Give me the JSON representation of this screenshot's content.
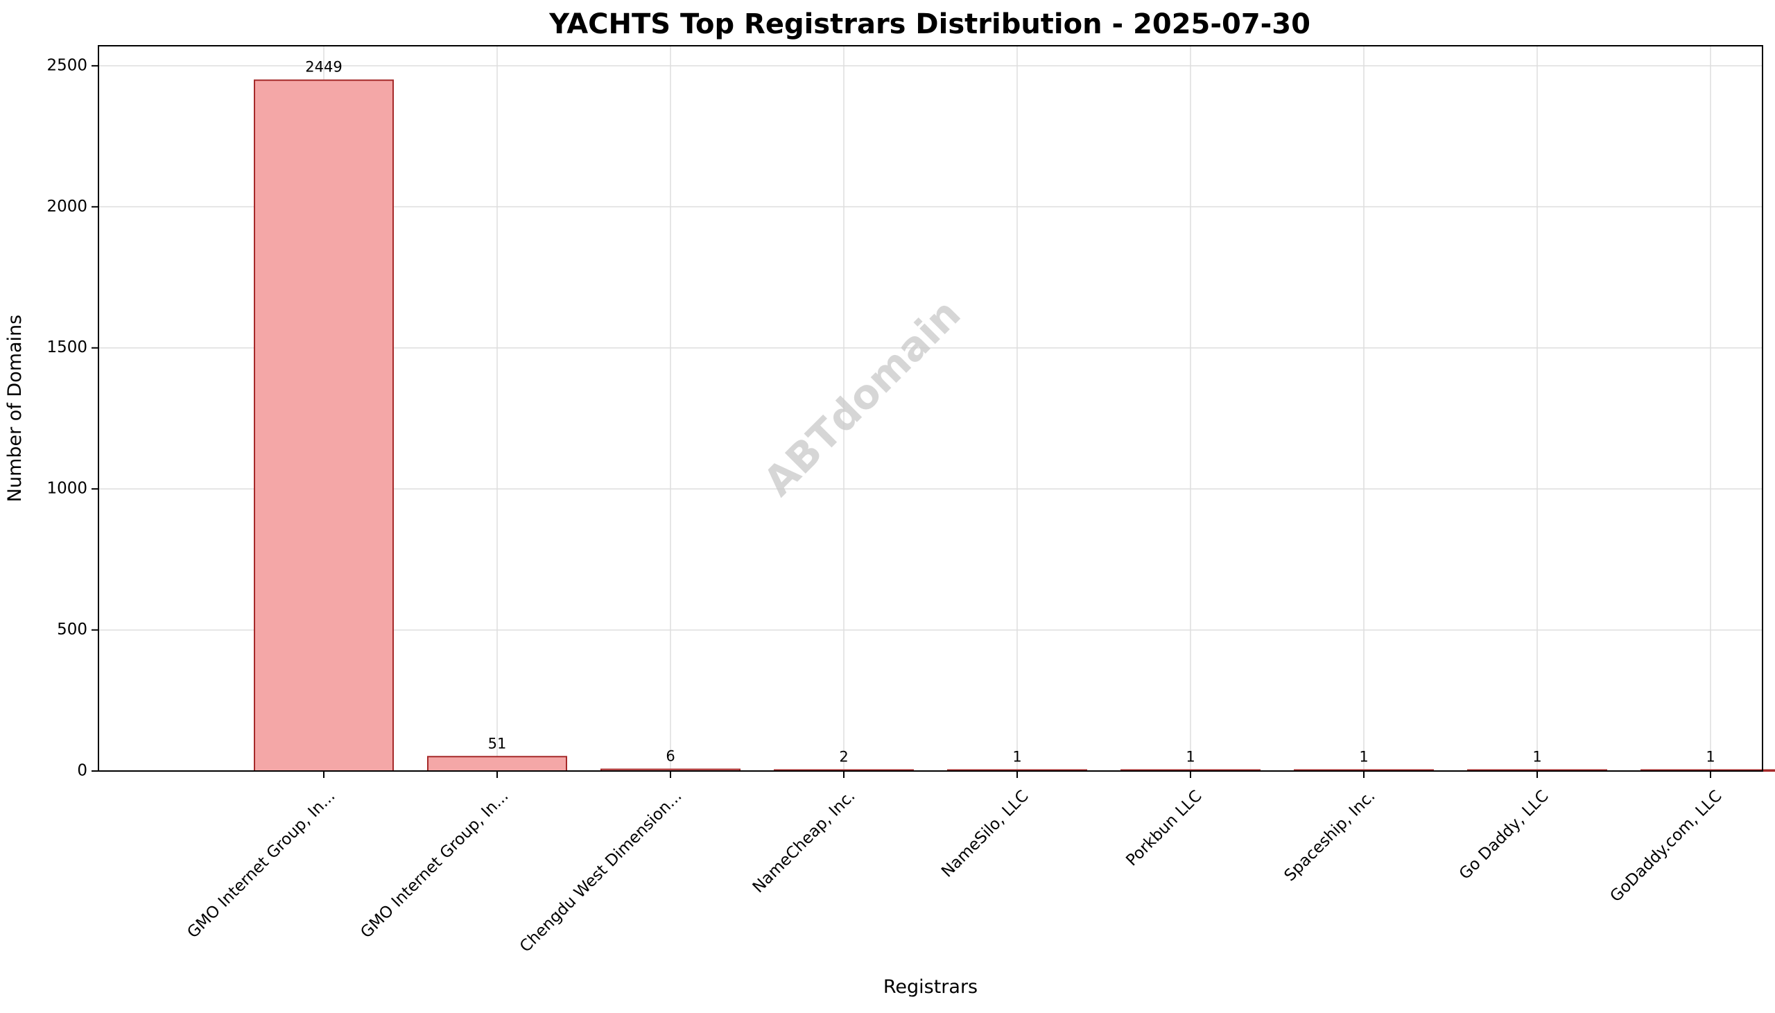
{
  "watermark": "ABTdomain",
  "chart_data": {
    "type": "bar",
    "title": "YACHTS Top Registrars Distribution - 2025-07-30",
    "xlabel": "Registrars",
    "ylabel": "Number of Domains",
    "categories": [
      "GMO Internet Group, In...",
      "GMO Internet Group, In...",
      "Chengdu West Dimension...",
      "NameCheap, Inc.",
      "NameSilo, LLC",
      "Porkbun LLC",
      "Spaceship, Inc.",
      "Go Daddy, LLC",
      "GoDaddy.com, LLC"
    ],
    "values": [
      2449,
      51,
      6,
      2,
      1,
      1,
      1,
      1,
      1
    ],
    "data_labels": [
      "2449",
      "51",
      "6",
      "2",
      "1",
      "1",
      "1",
      "1",
      "1"
    ],
    "ylim": [
      0,
      2571
    ],
    "yticks": [
      0,
      500,
      1000,
      1500,
      2000,
      2500
    ],
    "grid": true,
    "legend": "none",
    "colors": {
      "bar_fill": "#f4a7a7",
      "bar_edge": "#a52a2a",
      "grid": "#dedede",
      "watermark": "#c8c8c8"
    }
  }
}
